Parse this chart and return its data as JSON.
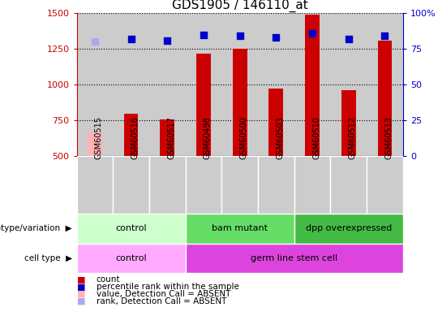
{
  "title": "GDS1905 / 146110_at",
  "samples": [
    "GSM60515",
    "GSM60516",
    "GSM60517",
    "GSM60498",
    "GSM60500",
    "GSM60503",
    "GSM60510",
    "GSM60512",
    "GSM60513"
  ],
  "counts": [
    670,
    800,
    760,
    1215,
    1250,
    975,
    1490,
    960,
    1310
  ],
  "counts_absent": [
    true,
    false,
    false,
    false,
    false,
    false,
    false,
    false,
    false
  ],
  "ranks_pct": [
    80,
    82,
    81,
    85,
    84,
    83,
    86,
    82,
    84
  ],
  "ranks_absent": [
    true,
    false,
    false,
    false,
    false,
    false,
    false,
    false,
    false
  ],
  "ylim_left": [
    500,
    1500
  ],
  "ylim_right": [
    0,
    100
  ],
  "right_ticks": [
    0,
    25,
    50,
    75,
    100
  ],
  "left_ticks": [
    500,
    750,
    1000,
    1250,
    1500
  ],
  "bar_color_normal": "#cc0000",
  "bar_color_absent": "#ffb3b3",
  "rank_color_normal": "#0000cc",
  "rank_color_absent": "#aaaaee",
  "genotype_groups": [
    {
      "label": "control",
      "start": 0,
      "end": 3,
      "color": "#ccffcc"
    },
    {
      "label": "bam mutant",
      "start": 3,
      "end": 6,
      "color": "#66dd66"
    },
    {
      "label": "dpp overexpressed",
      "start": 6,
      "end": 9,
      "color": "#44bb44"
    }
  ],
  "celltype_groups": [
    {
      "label": "control",
      "start": 0,
      "end": 3,
      "color": "#ffaaff"
    },
    {
      "label": "germ line stem cell",
      "start": 3,
      "end": 9,
      "color": "#dd44dd"
    }
  ],
  "legend_items": [
    {
      "label": "count",
      "color": "#cc0000"
    },
    {
      "label": "percentile rank within the sample",
      "color": "#0000cc"
    },
    {
      "label": "value, Detection Call = ABSENT",
      "color": "#ffb3b3"
    },
    {
      "label": "rank, Detection Call = ABSENT",
      "color": "#aaaaee"
    }
  ],
  "background_color": "#ffffff",
  "column_bg_color": "#cccccc"
}
